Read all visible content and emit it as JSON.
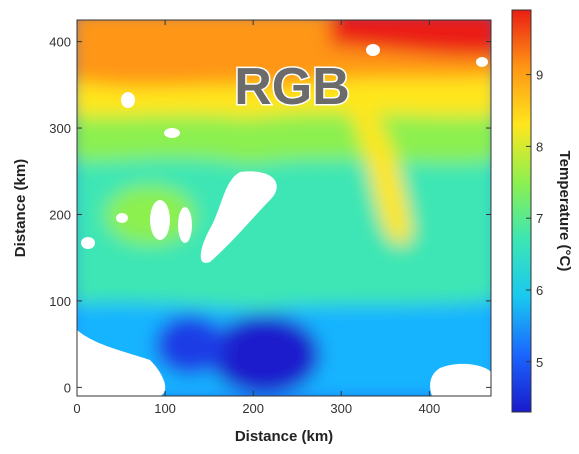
{
  "chart_data": {
    "type": "heatmap",
    "watermark": "RGB",
    "xlabel": "Distance (km)",
    "ylabel": "Distance (km)",
    "colorbar_label": "Temperature (°C)",
    "xlim": [
      0,
      470
    ],
    "ylim": [
      -10,
      425
    ],
    "xticks": [
      0,
      100,
      200,
      300,
      400
    ],
    "yticks": [
      0,
      100,
      200,
      300,
      400
    ],
    "clim": [
      4.3,
      9.9
    ],
    "cticks": [
      5,
      6,
      7,
      8,
      9
    ],
    "colormap": [
      "#1a1acc",
      "#1a66ff",
      "#19c8f0",
      "#3ce6b4",
      "#8cf050",
      "#ffe61e",
      "#ff9614",
      "#eb1e14"
    ],
    "background": "#ffffff",
    "temperature_field_approx": [
      {
        "region": "north (y > 320 km)",
        "temperature_c": 9.2
      },
      {
        "region": "central belt (y 220-320 km)",
        "temperature_c": 8.0
      },
      {
        "region": "middle (y 120-220 km)",
        "temperature_c": 7.0
      },
      {
        "region": "south (y < 120 km)",
        "temperature_c": 5.6
      },
      {
        "region": "southern eddy near x 230-320 km",
        "temperature_c": 5.0
      }
    ]
  }
}
